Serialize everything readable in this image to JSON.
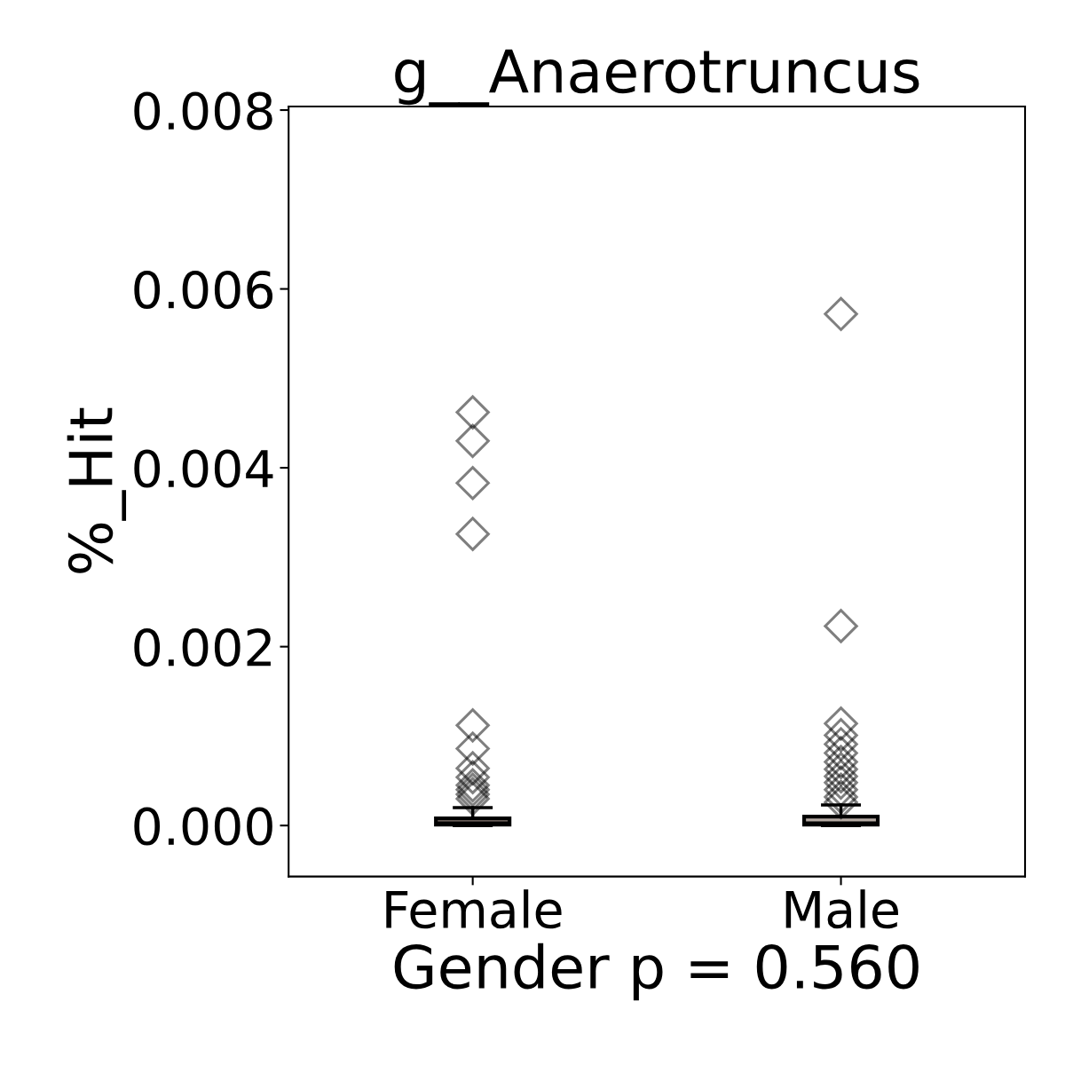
{
  "chart_data": {
    "type": "box",
    "title": "g__Anaerotruncus",
    "xlabel": "Gender p = 0.560",
    "ylabel": "%_Hit",
    "categories": [
      "Female",
      "Male"
    ],
    "colors": [
      "#8a7b75",
      "#b5aaa3"
    ],
    "boxes": [
      {
        "low": 0,
        "q1": 1e-05,
        "median": 3e-05,
        "q3": 8e-05,
        "high": 0.0002,
        "outliers": [
          0.00462,
          0.0043,
          0.00383,
          0.00326,
          0.00112,
          0.00086,
          0.00064,
          0.00054,
          0.00045,
          0.0004,
          0.00035,
          0.0003
        ]
      },
      {
        "low": 0,
        "q1": 1e-05,
        "median": 3e-05,
        "q3": 0.0001,
        "high": 0.00023,
        "outliers": [
          0.00572,
          0.00223,
          0.00114,
          0.00101,
          0.00091,
          0.00081,
          0.00071,
          0.00063,
          0.00055,
          0.00048,
          0.0004,
          0.00032,
          0.00026
        ]
      }
    ],
    "marker": "diamond",
    "ylim": [
      -0.00057,
      0.00804
    ],
    "yticks": [
      {
        "value": 0,
        "label": "0.000"
      },
      {
        "value": 0.002,
        "label": "0.002"
      },
      {
        "value": 0.004,
        "label": "0.004"
      },
      {
        "value": 0.006,
        "label": "0.006"
      },
      {
        "value": 0.008,
        "label": "0.008"
      }
    ],
    "grid": false
  }
}
